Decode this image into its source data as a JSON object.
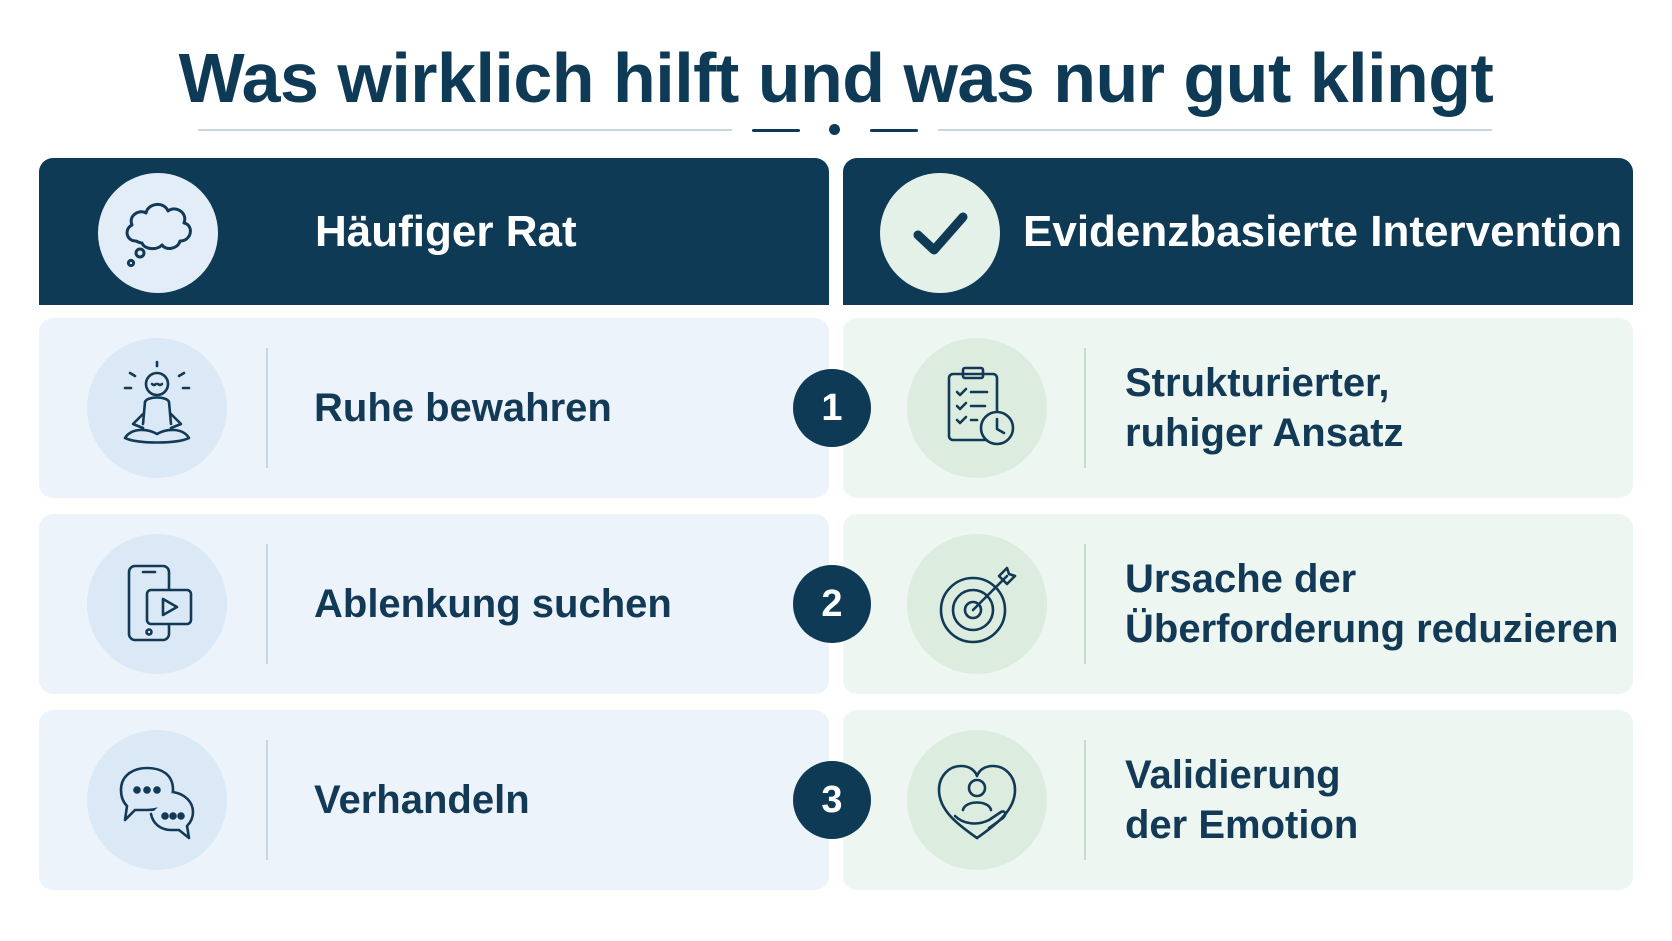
{
  "title": "Was wirklich hilft und was nur gut klingt",
  "headers": {
    "left": {
      "label": "Häufiger Rat",
      "icon": "thought-bubble-icon"
    },
    "right": {
      "label": "Evidenzbasierte Intervention",
      "icon": "checkmark-icon"
    }
  },
  "rows": [
    {
      "number": "1",
      "advice": {
        "label": "Ruhe bewahren",
        "icon": "meditation-icon"
      },
      "intervention": {
        "line1": "Strukturierter,",
        "line2": "ruhiger Ansatz",
        "icon": "clipboard-clock-icon"
      }
    },
    {
      "number": "2",
      "advice": {
        "label": "Ablenkung suchen",
        "icon": "phone-video-icon"
      },
      "intervention": {
        "line1": "Ursache der",
        "line2": "Überforderung reduzieren",
        "icon": "target-arrow-icon"
      }
    },
    {
      "number": "3",
      "advice": {
        "label": "Verhandeln",
        "icon": "speech-bubbles-icon"
      },
      "intervention": {
        "line1": "Validierung",
        "line2": "der Emotion",
        "icon": "heart-person-icon"
      }
    }
  ],
  "colors": {
    "navy": "#0e3a55",
    "left_card": "#edf3fb",
    "right_card": "#edf6f0"
  }
}
